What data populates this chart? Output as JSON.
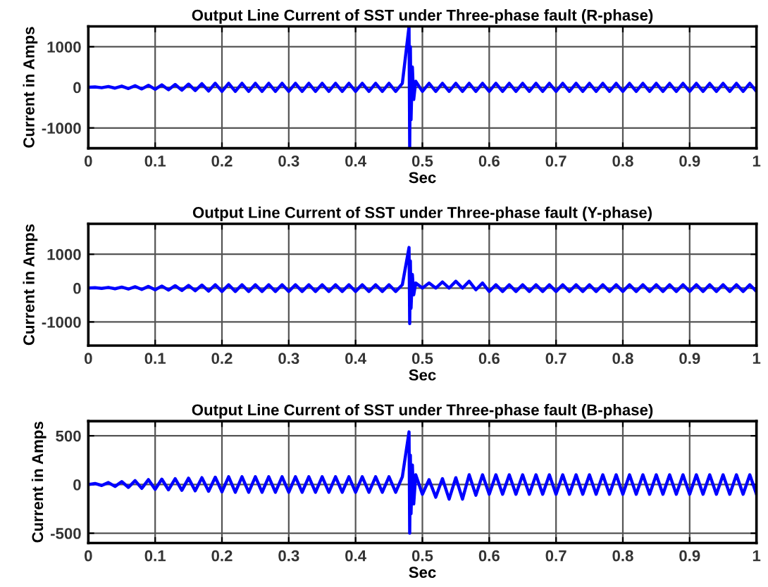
{
  "chart_data": [
    {
      "type": "line",
      "title": "Output Line Current of SST under Three-phase fault (R-phase)",
      "xlabel": "Sec",
      "ylabel": "Current in Amps",
      "xlim": [
        0,
        1
      ],
      "ylim": [
        -1500,
        1500
      ],
      "xticks": [
        0,
        0.1,
        0.2,
        0.3,
        0.4,
        0.5,
        0.6,
        0.7,
        0.8,
        0.9,
        1
      ],
      "yticks": [
        -1000,
        0,
        1000
      ],
      "grid": true,
      "x": [
        0,
        0.01,
        0.02,
        0.03,
        0.04,
        0.05,
        0.06,
        0.07,
        0.08,
        0.09,
        0.1,
        0.11,
        0.12,
        0.13,
        0.14,
        0.15,
        0.16,
        0.17,
        0.18,
        0.19,
        0.2,
        0.21,
        0.22,
        0.23,
        0.24,
        0.25,
        0.26,
        0.27,
        0.28,
        0.29,
        0.3,
        0.31,
        0.32,
        0.33,
        0.34,
        0.35,
        0.36,
        0.37,
        0.38,
        0.39,
        0.4,
        0.41,
        0.42,
        0.43,
        0.44,
        0.45,
        0.46,
        0.47,
        0.48,
        0.481,
        0.482,
        0.483,
        0.485,
        0.487,
        0.49,
        0.5,
        0.51,
        0.52,
        0.53,
        0.54,
        0.55,
        0.56,
        0.57,
        0.58,
        0.59,
        0.6,
        0.61,
        0.62,
        0.63,
        0.64,
        0.65,
        0.66,
        0.67,
        0.68,
        0.69,
        0.7,
        0.71,
        0.72,
        0.73,
        0.74,
        0.75,
        0.76,
        0.77,
        0.78,
        0.79,
        0.8,
        0.81,
        0.82,
        0.83,
        0.84,
        0.85,
        0.86,
        0.87,
        0.88,
        0.89,
        0.9,
        0.91,
        0.92,
        0.93,
        0.94,
        0.95,
        0.96,
        0.97,
        0.98,
        0.99,
        1
      ],
      "series": [
        {
          "color": "#0000ff",
          "values": [
            0,
            10,
            -10,
            20,
            -20,
            30,
            -30,
            40,
            -40,
            50,
            -50,
            60,
            -60,
            70,
            -70,
            80,
            -80,
            90,
            -90,
            100,
            -100,
            100,
            -100,
            100,
            -100,
            100,
            -100,
            100,
            -100,
            100,
            -100,
            100,
            -100,
            100,
            -100,
            100,
            -100,
            100,
            -100,
            100,
            -100,
            100,
            -100,
            100,
            -100,
            100,
            -100,
            100,
            1500,
            -1500,
            1000,
            -800,
            500,
            -300,
            150,
            -100,
            100,
            -100,
            100,
            -100,
            100,
            -100,
            100,
            -100,
            100,
            -100,
            100,
            -100,
            100,
            -100,
            100,
            -100,
            100,
            -100,
            100,
            -100,
            100,
            -100,
            100,
            -100,
            100,
            -100,
            100,
            -100,
            100,
            -100,
            100,
            -100,
            100,
            -100,
            100,
            -100,
            100,
            -100,
            100,
            -100,
            100,
            -100,
            100,
            -100,
            100,
            -100,
            100,
            -100,
            100,
            -100
          ]
        }
      ]
    },
    {
      "type": "line",
      "title": "Output Line Current of SST under Three-phase fault (Y-phase)",
      "xlabel": "Sec",
      "ylabel": "Current in Amps",
      "xlim": [
        0,
        1
      ],
      "ylim": [
        -1700,
        1900
      ],
      "xticks": [
        0,
        0.1,
        0.2,
        0.3,
        0.4,
        0.5,
        0.6,
        0.7,
        0.8,
        0.9,
        1
      ],
      "yticks": [
        -1000,
        0,
        1000
      ],
      "grid": true,
      "x": [
        0,
        0.01,
        0.02,
        0.03,
        0.04,
        0.05,
        0.06,
        0.07,
        0.08,
        0.09,
        0.1,
        0.11,
        0.12,
        0.13,
        0.14,
        0.15,
        0.16,
        0.17,
        0.18,
        0.19,
        0.2,
        0.21,
        0.22,
        0.23,
        0.24,
        0.25,
        0.26,
        0.27,
        0.28,
        0.29,
        0.3,
        0.31,
        0.32,
        0.33,
        0.34,
        0.35,
        0.36,
        0.37,
        0.38,
        0.39,
        0.4,
        0.41,
        0.42,
        0.43,
        0.44,
        0.45,
        0.46,
        0.47,
        0.48,
        0.481,
        0.482,
        0.483,
        0.485,
        0.487,
        0.49,
        0.5,
        0.51,
        0.52,
        0.53,
        0.54,
        0.55,
        0.56,
        0.57,
        0.58,
        0.59,
        0.6,
        0.61,
        0.62,
        0.63,
        0.64,
        0.65,
        0.66,
        0.67,
        0.68,
        0.69,
        0.7,
        0.71,
        0.72,
        0.73,
        0.74,
        0.75,
        0.76,
        0.77,
        0.78,
        0.79,
        0.8,
        0.81,
        0.82,
        0.83,
        0.84,
        0.85,
        0.86,
        0.87,
        0.88,
        0.89,
        0.9,
        0.91,
        0.92,
        0.93,
        0.94,
        0.95,
        0.96,
        0.97,
        0.98,
        0.99,
        1
      ],
      "series": [
        {
          "color": "#0000ff",
          "values": [
            0,
            10,
            -10,
            20,
            -20,
            30,
            -30,
            40,
            -40,
            50,
            -50,
            60,
            -60,
            70,
            -70,
            80,
            -80,
            90,
            -90,
            100,
            -100,
            100,
            -100,
            100,
            -100,
            100,
            -100,
            100,
            -100,
            100,
            -100,
            100,
            -100,
            100,
            -100,
            100,
            -100,
            100,
            -100,
            100,
            -100,
            100,
            -100,
            100,
            -100,
            100,
            -100,
            100,
            1200,
            -1050,
            800,
            -600,
            400,
            -200,
            150,
            0,
            150,
            0,
            180,
            0,
            200,
            0,
            200,
            -50,
            150,
            -100,
            100,
            -100,
            100,
            -100,
            100,
            -100,
            100,
            -100,
            100,
            -100,
            100,
            -100,
            100,
            -100,
            100,
            -100,
            100,
            -100,
            100,
            -100,
            100,
            -100,
            100,
            -100,
            100,
            -100,
            100,
            -100,
            100,
            -100,
            100,
            -100,
            100,
            -100,
            100,
            -100,
            100,
            -100,
            100,
            -100
          ]
        }
      ]
    },
    {
      "type": "line",
      "title": "Output Line Current of SST under Three-phase fault (B-phase)",
      "xlabel": "Sec",
      "ylabel": "Current in Amps",
      "xlim": [
        0,
        1
      ],
      "ylim": [
        -600,
        650
      ],
      "xticks": [
        0,
        0.1,
        0.2,
        0.3,
        0.4,
        0.5,
        0.6,
        0.7,
        0.8,
        0.9,
        1
      ],
      "yticks": [
        -500,
        0,
        500
      ],
      "grid": true,
      "x": [
        0,
        0.01,
        0.02,
        0.03,
        0.04,
        0.05,
        0.06,
        0.07,
        0.08,
        0.09,
        0.1,
        0.11,
        0.12,
        0.13,
        0.14,
        0.15,
        0.16,
        0.17,
        0.18,
        0.19,
        0.2,
        0.21,
        0.22,
        0.23,
        0.24,
        0.25,
        0.26,
        0.27,
        0.28,
        0.29,
        0.3,
        0.31,
        0.32,
        0.33,
        0.34,
        0.35,
        0.36,
        0.37,
        0.38,
        0.39,
        0.4,
        0.41,
        0.42,
        0.43,
        0.44,
        0.45,
        0.46,
        0.47,
        0.48,
        0.481,
        0.482,
        0.483,
        0.485,
        0.487,
        0.49,
        0.5,
        0.51,
        0.52,
        0.53,
        0.54,
        0.55,
        0.56,
        0.57,
        0.58,
        0.59,
        0.6,
        0.61,
        0.62,
        0.63,
        0.64,
        0.65,
        0.66,
        0.67,
        0.68,
        0.69,
        0.7,
        0.71,
        0.72,
        0.73,
        0.74,
        0.75,
        0.76,
        0.77,
        0.78,
        0.79,
        0.8,
        0.81,
        0.82,
        0.83,
        0.84,
        0.85,
        0.86,
        0.87,
        0.88,
        0.89,
        0.9,
        0.91,
        0.92,
        0.93,
        0.94,
        0.95,
        0.96,
        0.97,
        0.98,
        0.99,
        1
      ],
      "series": [
        {
          "color": "#0000ff",
          "values": [
            0,
            10,
            -10,
            20,
            -20,
            30,
            -30,
            40,
            -40,
            50,
            -50,
            55,
            -55,
            60,
            -60,
            65,
            -65,
            70,
            -70,
            75,
            -75,
            80,
            -80,
            80,
            -80,
            80,
            -80,
            80,
            -80,
            80,
            -80,
            80,
            -80,
            80,
            -80,
            80,
            -80,
            80,
            -80,
            80,
            -80,
            80,
            -80,
            80,
            -80,
            80,
            -80,
            80,
            540,
            -500,
            300,
            -300,
            200,
            -200,
            100,
            -100,
            50,
            -130,
            60,
            -150,
            70,
            -150,
            100,
            -110,
            100,
            -100,
            100,
            -100,
            100,
            -100,
            100,
            -100,
            100,
            -100,
            100,
            -100,
            100,
            -100,
            100,
            -100,
            100,
            -100,
            100,
            -100,
            100,
            -100,
            100,
            -100,
            100,
            -100,
            100,
            -100,
            100,
            -100,
            100,
            -100,
            100,
            -100,
            100,
            -100,
            100,
            -100,
            100,
            -100,
            100,
            -100
          ]
        }
      ]
    }
  ]
}
